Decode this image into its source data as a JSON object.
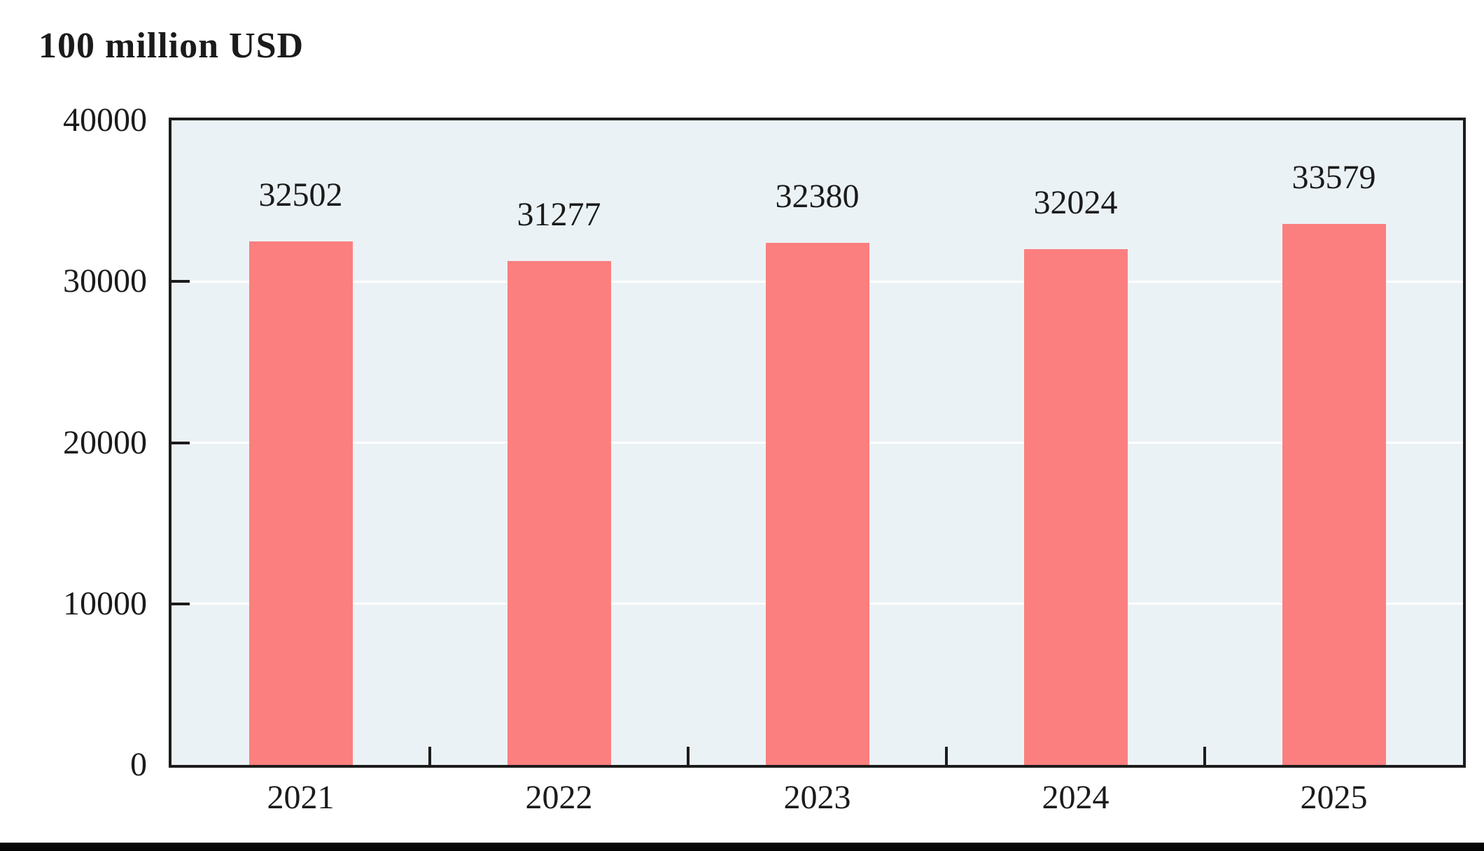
{
  "chart_data": {
    "type": "bar",
    "title": "100 million USD",
    "categories": [
      "2021",
      "2022",
      "2023",
      "2024",
      "2025"
    ],
    "values": [
      32502,
      31277,
      32380,
      32024,
      33579
    ],
    "xlabel": "",
    "ylabel": "100 million USD",
    "ylim": [
      0,
      40000
    ],
    "yticks": [
      0,
      10000,
      20000,
      30000,
      40000
    ],
    "grid": "horizontal white gridlines at 10000, 20000, 30000",
    "legend_position": "none",
    "bar_color": "#FB7F7F",
    "plot_background": "#EBF2F5",
    "axis_color": "#1c1c1c",
    "text_color": "#1b1b1b",
    "bottom_strip_color": "#050505"
  }
}
